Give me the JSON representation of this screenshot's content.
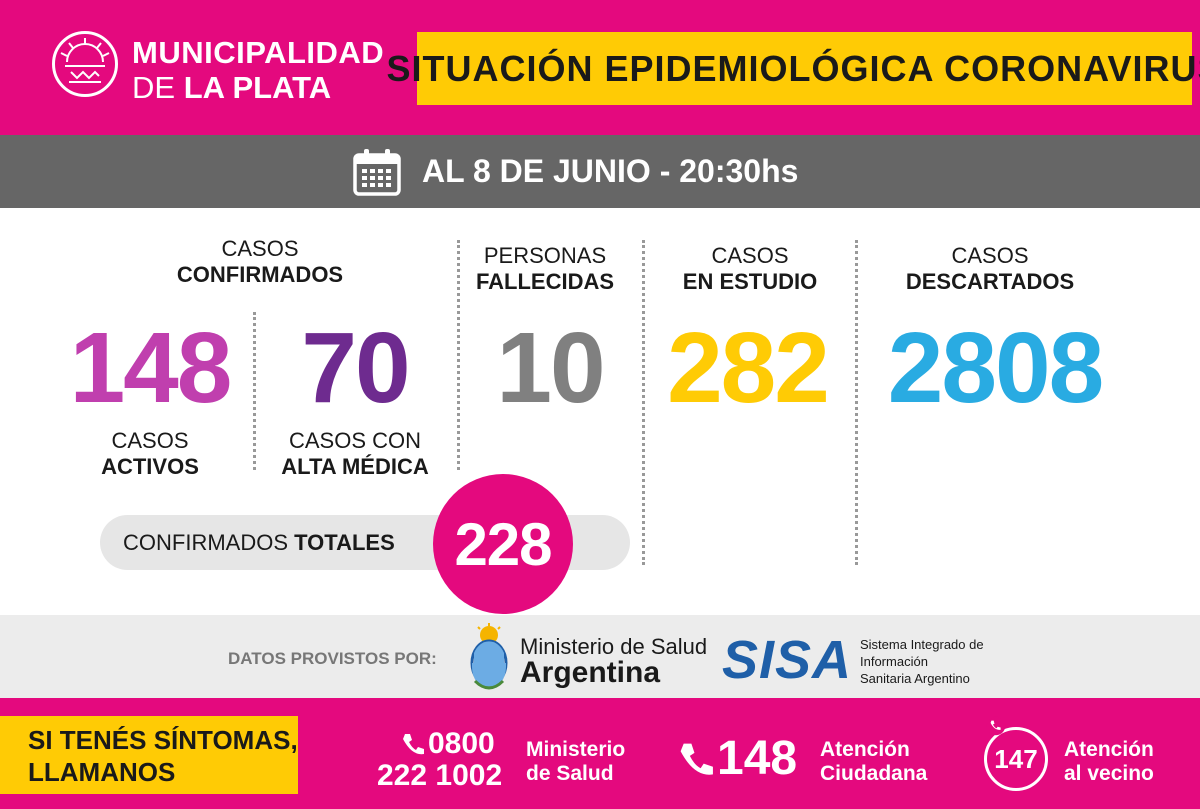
{
  "header": {
    "muni_line1": "MUNICIPALIDAD",
    "muni_line2_prefix": "DE ",
    "muni_line2_bold": "LA PLATA",
    "title": "SITUACIÓN EPIDEMIOLÓGICA CORONAVIRUS"
  },
  "date": {
    "text": "AL 8 DE JUNIO - 20:30hs"
  },
  "confirmados": {
    "label_line1": "CASOS",
    "label_line2": "CONFIRMADOS",
    "activos": {
      "value": "148",
      "label_line1": "CASOS",
      "label_line2": "ACTIVOS",
      "color": "#c03fae"
    },
    "alta": {
      "value": "70",
      "label_line1": "CASOS CON",
      "label_line2": "ALTA MÉDICA",
      "color": "#6e2b8f"
    }
  },
  "fallecidas": {
    "label_line1": "PERSONAS",
    "label_line2": "FALLECIDAS",
    "value": "10",
    "color": "#808080"
  },
  "en_estudio": {
    "label_line1": "CASOS",
    "label_line2": "EN ESTUDIO",
    "value": "282",
    "color": "#ffcb05"
  },
  "descartados": {
    "label_line1": "CASOS",
    "label_line2": "DESCARTADOS",
    "value": "2808",
    "color": "#29abe2"
  },
  "totales": {
    "label_prefix": "CONFIRMADOS ",
    "label_bold": "TOTALES",
    "value": "228"
  },
  "sources": {
    "provisto": "DATOS PROVISTOS POR:",
    "ministerio_line1": "Ministerio de Salud",
    "ministerio_line2": "Argentina",
    "sisa_logo": "SISA",
    "sisa_desc_line1": "Sistema Integrado de",
    "sisa_desc_line2": "Información",
    "sisa_desc_line3": "Sanitaria Argentino"
  },
  "footer": {
    "sintomas_line1": "SI TENÉS SÍNTOMAS,",
    "sintomas_line2": "LLAMANOS",
    "phone1_line1": "0800",
    "phone1_line2": "222 1002",
    "phone1_desc_line1": "Ministerio",
    "phone1_desc_line2": "de Salud",
    "phone2": "148",
    "phone2_desc_line1": "Atención",
    "phone2_desc_line2": "Ciudadana",
    "phone3": "147",
    "phone3_desc_line1": "Atención",
    "phone3_desc_line2": "al vecino"
  },
  "colors": {
    "brand": "#e4097e",
    "accent": "#ffcb05",
    "gray_bar": "#666666"
  }
}
